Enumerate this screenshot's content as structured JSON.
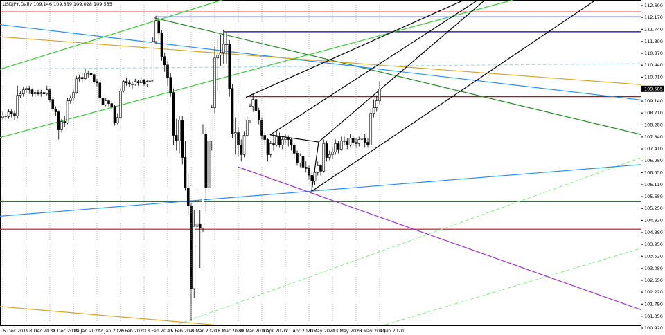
{
  "chart_data": {
    "type": "candlestick",
    "title": "USDJPY,Daily  109.146 109.859 109.028 109.585",
    "ylim": [
      100.92,
      112.6
    ],
    "yticks": [
      {
        "value": 112.6,
        "label": "112.600"
      },
      {
        "value": 112.17,
        "label": "112.170"
      },
      {
        "value": 111.74,
        "label": "111.740"
      },
      {
        "value": 111.3,
        "label": "111.300"
      },
      {
        "value": 110.87,
        "label": "110.870"
      },
      {
        "value": 110.44,
        "label": "110.440"
      },
      {
        "value": 110.01,
        "label": "110.010"
      },
      {
        "value": 109.14,
        "label": "109.140"
      },
      {
        "value": 108.71,
        "label": "108.710"
      },
      {
        "value": 108.28,
        "label": "108.280"
      },
      {
        "value": 107.84,
        "label": "107.840"
      },
      {
        "value": 107.41,
        "label": "107.410"
      },
      {
        "value": 106.98,
        "label": "106.980"
      },
      {
        "value": 106.55,
        "label": "106.550"
      },
      {
        "value": 106.11,
        "label": "106.110"
      },
      {
        "value": 105.68,
        "label": "105.680"
      },
      {
        "value": 105.25,
        "label": "105.250"
      },
      {
        "value": 104.82,
        "label": "104.820"
      },
      {
        "value": 104.38,
        "label": "104.380"
      },
      {
        "value": 103.95,
        "label": "103.950"
      },
      {
        "value": 103.52,
        "label": "103.520"
      },
      {
        "value": 103.08,
        "label": "103.080"
      },
      {
        "value": 102.65,
        "label": "102.650"
      },
      {
        "value": 102.22,
        "label": "102.220"
      },
      {
        "value": 101.79,
        "label": "101.790"
      },
      {
        "value": 101.35,
        "label": "101.350"
      },
      {
        "value": 100.92,
        "label": "100.920"
      }
    ],
    "last_price": 109.585,
    "up_color": "#ffffff",
    "down_color": "#000000",
    "categories": [
      "6 Dec 2019",
      null,
      null,
      null,
      null,
      null,
      null,
      null,
      "18 Dec 2019",
      null,
      null,
      null,
      null,
      null,
      null,
      null,
      "30 Dec 2019",
      null,
      null,
      null,
      null,
      null,
      null,
      null,
      "10 Jan 2020",
      null,
      null,
      null,
      null,
      null,
      null,
      null,
      "22 Jan 2020",
      null,
      null,
      null,
      null,
      null,
      null,
      null,
      "3 Feb 2020",
      null,
      null,
      null,
      null,
      null,
      null,
      null,
      "13 Feb 2020",
      null,
      null,
      null,
      null,
      null,
      null,
      null,
      "25 Feb 2020",
      null,
      null,
      null,
      null,
      null,
      null,
      null,
      "6 Mar 2020",
      null,
      null,
      null,
      null,
      null,
      null,
      null,
      "18 Mar 2020",
      null,
      null,
      null,
      null,
      null,
      null,
      null,
      "30 Mar 2020",
      null,
      null,
      null,
      null,
      null,
      null,
      null,
      "9 Apr 2020",
      null,
      null,
      null,
      null,
      null,
      null,
      null,
      "21 Apr 2020",
      null,
      null,
      null,
      null,
      null,
      null,
      null,
      "1 May 2020",
      null,
      null,
      null,
      null,
      null,
      null,
      null,
      "13 May 2020",
      null,
      null,
      null,
      null,
      null,
      null,
      null,
      "25 May 2020",
      null,
      null,
      null,
      null,
      null,
      null,
      null,
      "4 Jun 2020"
    ],
    "ohlc": [
      [
        108.55,
        108.75,
        108.45,
        108.6
      ],
      [
        108.6,
        108.7,
        108.45,
        108.58
      ],
      [
        108.58,
        108.85,
        108.5,
        108.75
      ],
      [
        108.75,
        108.85,
        108.55,
        108.7
      ],
      [
        108.7,
        108.8,
        108.45,
        108.6
      ],
      [
        108.6,
        109.7,
        108.5,
        109.35
      ],
      [
        109.35,
        109.5,
        109.25,
        109.4
      ],
      [
        109.4,
        109.65,
        109.3,
        109.55
      ],
      [
        109.55,
        109.7,
        109.45,
        109.6
      ],
      [
        109.6,
        109.7,
        109.4,
        109.55
      ],
      [
        109.55,
        109.6,
        109.3,
        109.4
      ],
      [
        109.4,
        109.55,
        109.3,
        109.45
      ],
      [
        109.45,
        109.55,
        109.35,
        109.4
      ],
      [
        109.4,
        109.55,
        109.3,
        109.45
      ],
      [
        109.45,
        109.55,
        109.3,
        109.4
      ],
      [
        109.4,
        109.7,
        109.35,
        109.55
      ],
      [
        109.55,
        109.6,
        109.1,
        109.2
      ],
      [
        109.2,
        109.3,
        108.75,
        108.85
      ],
      [
        108.85,
        108.95,
        108.6,
        108.75
      ],
      [
        108.75,
        108.8,
        107.75,
        108.1
      ],
      [
        108.1,
        108.5,
        108.0,
        108.4
      ],
      [
        108.4,
        108.6,
        108.2,
        108.35
      ],
      [
        108.35,
        109.25,
        108.3,
        109.15
      ],
      [
        109.15,
        109.35,
        109.05,
        109.25
      ],
      [
        109.25,
        109.55,
        109.15,
        109.45
      ],
      [
        109.45,
        110.05,
        109.4,
        109.95
      ],
      [
        109.95,
        110.1,
        109.85,
        110.0
      ],
      [
        110.0,
        110.15,
        109.8,
        109.95
      ],
      [
        109.95,
        110.3,
        109.9,
        110.15
      ],
      [
        110.15,
        110.25,
        110.0,
        110.15
      ],
      [
        110.15,
        110.2,
        109.95,
        110.1
      ],
      [
        110.1,
        110.15,
        109.75,
        109.85
      ],
      [
        109.85,
        109.95,
        109.65,
        109.8
      ],
      [
        109.8,
        109.85,
        109.1,
        109.25
      ],
      [
        109.25,
        109.35,
        108.9,
        109.0
      ],
      [
        109.0,
        109.25,
        108.95,
        109.15
      ],
      [
        109.15,
        109.2,
        108.95,
        109.05
      ],
      [
        109.05,
        109.15,
        108.8,
        108.95
      ],
      [
        108.95,
        109.0,
        108.25,
        108.35
      ],
      [
        108.35,
        108.7,
        108.3,
        108.55
      ],
      [
        108.55,
        109.6,
        108.5,
        109.5
      ],
      [
        109.5,
        109.9,
        109.45,
        109.85
      ],
      [
        109.85,
        110.0,
        109.7,
        109.8
      ],
      [
        109.8,
        109.9,
        109.65,
        109.75
      ],
      [
        109.75,
        109.85,
        109.6,
        109.75
      ],
      [
        109.75,
        109.95,
        109.7,
        109.85
      ],
      [
        109.85,
        109.9,
        109.7,
        109.8
      ],
      [
        109.8,
        110.0,
        109.75,
        109.9
      ],
      [
        109.9,
        109.95,
        109.7,
        109.75
      ],
      [
        109.75,
        109.9,
        109.65,
        109.85
      ],
      [
        109.85,
        109.95,
        109.8,
        109.9
      ],
      [
        109.9,
        111.45,
        109.85,
        111.3
      ],
      [
        111.3,
        112.23,
        111.2,
        112.05
      ],
      [
        112.05,
        112.2,
        111.4,
        111.6
      ],
      [
        111.6,
        111.7,
        110.6,
        110.75
      ],
      [
        110.75,
        110.9,
        110.2,
        110.45
      ],
      [
        110.45,
        110.6,
        109.7,
        110.0
      ],
      [
        110.0,
        110.15,
        109.3,
        109.45
      ],
      [
        109.45,
        109.6,
        107.55,
        107.9
      ],
      [
        107.9,
        108.5,
        107.35,
        107.7
      ],
      [
        107.7,
        108.6,
        107.25,
        108.45
      ],
      [
        108.45,
        108.6,
        106.85,
        107.1
      ],
      [
        107.1,
        107.7,
        105.9,
        106.0
      ],
      [
        106.0,
        106.5,
        105.0,
        105.35
      ],
      [
        105.35,
        105.45,
        101.18,
        102.35
      ],
      [
        102.35,
        105.2,
        102.0,
        104.6
      ],
      [
        104.6,
        105.9,
        103.9,
        104.7
      ],
      [
        104.7,
        105.2,
        103.1,
        104.55
      ],
      [
        104.55,
        108.3,
        104.4,
        107.95
      ],
      [
        107.95,
        108.2,
        105.1,
        106.0
      ],
      [
        106.0,
        108.0,
        105.8,
        107.7
      ],
      [
        107.7,
        109.0,
        107.35,
        108.9
      ],
      [
        108.9,
        111.1,
        108.7,
        110.7
      ],
      [
        110.7,
        111.4,
        109.5,
        110.8
      ],
      [
        110.8,
        111.55,
        110.4,
        110.9
      ],
      [
        110.9,
        111.7,
        110.5,
        111.2
      ],
      [
        111.2,
        111.65,
        110.5,
        111.2
      ],
      [
        111.2,
        111.35,
        109.3,
        109.6
      ],
      [
        109.6,
        109.75,
        107.8,
        107.95
      ],
      [
        107.95,
        108.55,
        107.2,
        108.0
      ],
      [
        108.0,
        108.2,
        107.15,
        107.55
      ],
      [
        107.55,
        107.75,
        106.95,
        107.2
      ],
      [
        107.2,
        108.05,
        107.1,
        107.9
      ],
      [
        107.9,
        108.6,
        107.85,
        108.45
      ],
      [
        108.45,
        109.05,
        108.35,
        108.95
      ],
      [
        108.95,
        109.4,
        108.75,
        109.2
      ],
      [
        109.2,
        109.3,
        108.6,
        108.8
      ],
      [
        108.8,
        108.9,
        108.3,
        108.45
      ],
      [
        108.45,
        108.55,
        107.75,
        107.9
      ],
      [
        107.9,
        108.0,
        107.55,
        107.75
      ],
      [
        107.75,
        107.8,
        106.95,
        107.2
      ],
      [
        107.2,
        107.7,
        107.1,
        107.6
      ],
      [
        107.6,
        107.95,
        107.35,
        107.55
      ],
      [
        107.55,
        108.05,
        107.5,
        107.85
      ],
      [
        107.85,
        108.0,
        107.45,
        107.55
      ],
      [
        107.55,
        107.85,
        107.4,
        107.75
      ],
      [
        107.75,
        107.95,
        107.6,
        107.8
      ],
      [
        107.8,
        107.9,
        107.5,
        107.75
      ],
      [
        107.75,
        107.8,
        107.35,
        107.55
      ],
      [
        107.55,
        107.65,
        107.05,
        107.25
      ],
      [
        107.25,
        107.35,
        106.8,
        106.9
      ],
      [
        106.9,
        107.25,
        106.75,
        107.15
      ],
      [
        107.15,
        107.2,
        106.6,
        106.75
      ],
      [
        106.75,
        106.95,
        106.55,
        106.7
      ],
      [
        106.7,
        106.8,
        106.3,
        106.45
      ],
      [
        106.45,
        106.6,
        105.98,
        106.25
      ],
      [
        106.25,
        106.7,
        106.1,
        106.55
      ],
      [
        106.55,
        106.95,
        106.45,
        106.8
      ],
      [
        106.8,
        106.85,
        106.45,
        106.6
      ],
      [
        106.6,
        107.75,
        106.55,
        107.6
      ],
      [
        107.6,
        107.7,
        106.95,
        107.1
      ],
      [
        107.1,
        107.35,
        107.0,
        107.2
      ],
      [
        107.2,
        107.45,
        107.05,
        107.3
      ],
      [
        107.3,
        107.75,
        107.2,
        107.6
      ],
      [
        107.6,
        107.7,
        107.25,
        107.4
      ],
      [
        107.4,
        107.85,
        107.35,
        107.7
      ],
      [
        107.7,
        107.85,
        107.55,
        107.7
      ],
      [
        107.7,
        107.8,
        107.4,
        107.55
      ],
      [
        107.55,
        107.95,
        107.5,
        107.8
      ],
      [
        107.8,
        107.9,
        107.5,
        107.65
      ],
      [
        107.65,
        107.8,
        107.45,
        107.6
      ],
      [
        107.6,
        107.85,
        107.5,
        107.75
      ],
      [
        107.75,
        107.9,
        107.4,
        107.8
      ],
      [
        107.8,
        107.95,
        107.45,
        107.65
      ],
      [
        107.65,
        107.8,
        107.45,
        107.55
      ],
      [
        107.55,
        108.85,
        107.5,
        108.7
      ],
      [
        108.7,
        109.2,
        108.55,
        108.9
      ],
      [
        108.9,
        109.35,
        108.75,
        109.15
      ],
      [
        109.146,
        109.859,
        109.028,
        109.585
      ]
    ],
    "lines": [
      {
        "x": [
          -2,
          230
        ],
        "y": [
          112.37,
          112.37
        ],
        "color": "#e00000"
      },
      {
        "x": [
          52,
          230
        ],
        "y": [
          112.19,
          112.19
        ],
        "color": "#0000a0"
      },
      {
        "x": [
          75,
          230
        ],
        "y": [
          111.65,
          111.65
        ],
        "color": "#0000a0"
      },
      {
        "x": [
          83,
          230
        ],
        "y": [
          109.3,
          109.3
        ],
        "color": "#e00000"
      },
      {
        "x": [
          -2,
          230
        ],
        "y": [
          105.5,
          105.5
        ],
        "color": "#007000"
      },
      {
        "x": [
          -2,
          230
        ],
        "y": [
          104.5,
          104.5
        ],
        "color": "#e00000"
      },
      {
        "x": [
          -2,
          230
        ],
        "y": [
          100.96,
          100.96
        ],
        "color": "#1e90ff"
      },
      {
        "x": [
          51.3,
          225
        ],
        "y": [
          112.16,
          107.72
        ],
        "color": "#228b22"
      },
      {
        "x": [
          -1,
          225
        ],
        "y": [
          111.91,
          109.08
        ],
        "color": "#1e90ff"
      },
      {
        "x": [
          -1,
          225
        ],
        "y": [
          111.47,
          109.67
        ],
        "color": "#daa520"
      },
      {
        "x": [
          -1,
          74.4
        ],
        "y": [
          110.29,
          112.8
        ],
        "color": "#32cd32"
      },
      {
        "x": [
          -1,
          173.2
        ],
        "y": [
          107.82,
          112.8
        ],
        "color": "#32cd32"
      },
      {
        "x": [
          50.8,
          225
        ],
        "y": [
          100.72,
          107.41
        ],
        "color": "#90ee90",
        "dash": true
      },
      {
        "x": [
          112,
          225
        ],
        "y": [
          100.47,
          104.07
        ],
        "color": "#90ee90",
        "dash": true
      },
      {
        "x": [
          -1,
          225
        ],
        "y": [
          110.3,
          110.5
        ],
        "color": "#add8e6",
        "dash": true
      },
      {
        "x": [
          -1,
          216.7
        ],
        "y": [
          104.97,
          106.84
        ],
        "color": "#1e90ff"
      },
      {
        "x": [
          79.8,
          219
        ],
        "y": [
          106.76,
          101.5
        ],
        "color": "#9932cc"
      },
      {
        "x": [
          -1,
          112
        ],
        "y": [
          101.7,
          100.67
        ],
        "color": "#daa520"
      },
      {
        "x": [
          104.9,
          201.4
        ],
        "y": [
          105.87,
          112.8
        ],
        "color": "#000000"
      },
      {
        "x": [
          90.8,
          161.4
        ],
        "y": [
          107.92,
          112.8
        ],
        "color": "#000000"
      },
      {
        "x": [
          107.3,
          163.8
        ],
        "y": [
          107.66,
          112.8
        ],
        "color": "#000000"
      },
      {
        "x": [
          82.6,
          156.7
        ],
        "y": [
          109.28,
          112.8
        ],
        "color": "#000000"
      },
      {
        "x": [
          90.8,
          107.3
        ],
        "y": [
          107.92,
          107.66
        ],
        "color": "#000000"
      },
      {
        "x": [
          107.3,
          104.9
        ],
        "y": [
          107.66,
          105.87
        ],
        "color": "#000000"
      }
    ]
  }
}
